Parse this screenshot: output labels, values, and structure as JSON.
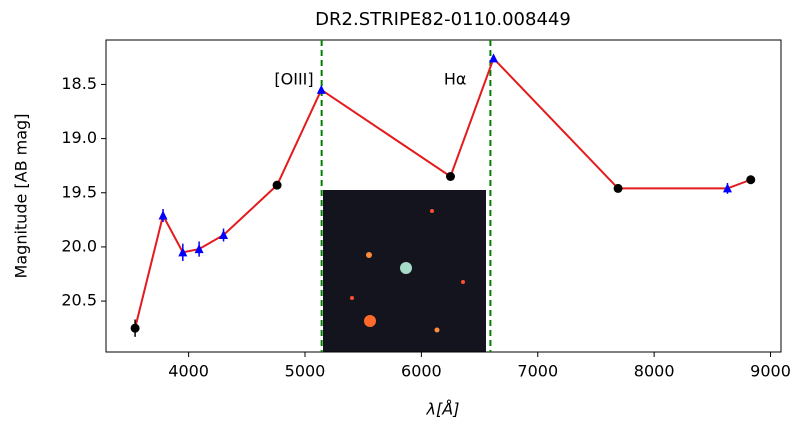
{
  "chart_data": {
    "type": "line",
    "title": "DR2.STRIPE82-0110.008449",
    "x_label": "λ[Å]",
    "y_label": "Magnitude [AB mag]",
    "x": [
      3540,
      3780,
      3950,
      4090,
      4300,
      4760,
      5140,
      6250,
      6620,
      7690,
      8630,
      8830
    ],
    "values": [
      20.75,
      19.71,
      20.05,
      20.02,
      19.89,
      19.43,
      18.55,
      19.35,
      18.26,
      19.46,
      19.46,
      19.38
    ],
    "errors": [
      0.08,
      0.06,
      0.08,
      0.07,
      0.06,
      0.03,
      0.03,
      0.03,
      0.03,
      0.03,
      0.05,
      0.04
    ],
    "markers": [
      "circle",
      "triangle",
      "triangle",
      "triangle",
      "triangle",
      "circle",
      "triangle",
      "circle",
      "triangle",
      "circle",
      "triangle",
      "circle"
    ],
    "line_color": "#e41a1c",
    "marker_colors": {
      "circle": "#000000",
      "triangle": "#0000ff"
    },
    "xlim": [
      3290,
      9090
    ],
    "ylim": [
      20.97,
      18.09
    ],
    "xticks": [
      4000,
      5000,
      6000,
      7000,
      8000,
      9000
    ],
    "yticks": [
      18.5,
      {
        "value": 19,
        "label": "19.0"
      },
      19.5,
      {
        "value": 20,
        "label": "20.0"
      },
      20.5
    ],
    "lines": [
      {
        "x": 5143,
        "label": "[OIII]",
        "color": "#008000"
      },
      {
        "x": 6593,
        "label": "Hα",
        "color": "#008000"
      }
    ]
  }
}
